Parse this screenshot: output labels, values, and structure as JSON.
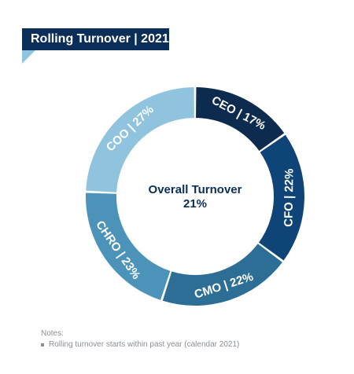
{
  "title": "Rolling Turnover | 2021",
  "chart_data": {
    "type": "pie",
    "style": "donut",
    "center_label": "Overall Turnover",
    "center_value": "21%",
    "segments": [
      {
        "label": "CEO | 17%",
        "category": "CEO",
        "value": 17,
        "color": "#0d2b4e"
      },
      {
        "label": "CFO | 22%",
        "category": "CFO",
        "value": 22,
        "color": "#0f4478"
      },
      {
        "label": "CMO | 22%",
        "category": "CMO",
        "value": 22,
        "color": "#2c6e96"
      },
      {
        "label": "CHRO | 23%",
        "category": "CHRO",
        "value": 23,
        "color": "#4c93b9"
      },
      {
        "label": "COO | 27%",
        "category": "COO",
        "value": 27,
        "color": "#90c4de"
      }
    ]
  },
  "notes": {
    "heading": "Notes:",
    "items": [
      "Rolling turnover starts within past year (calendar 2021)"
    ]
  }
}
